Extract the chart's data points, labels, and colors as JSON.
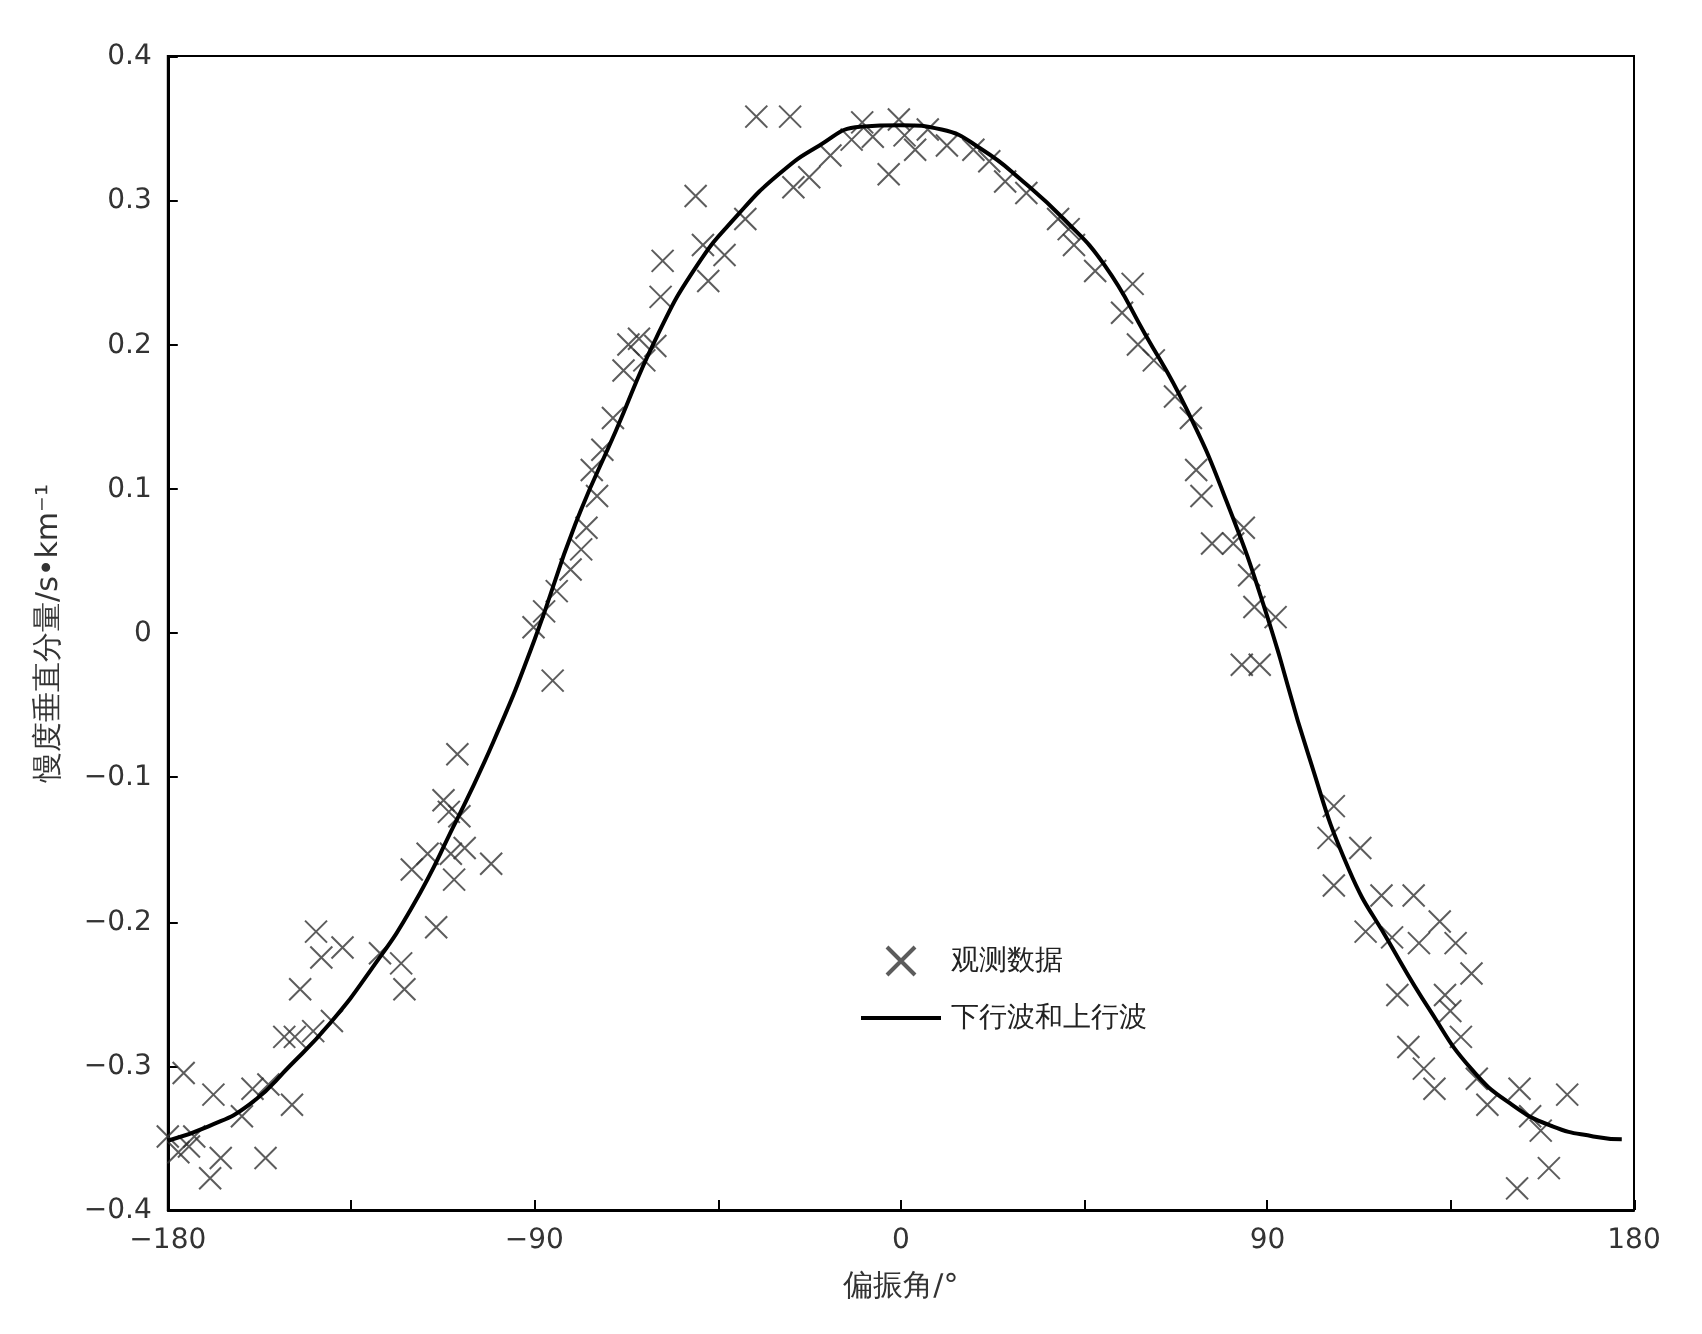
{
  "chart_data": {
    "type": "scatter",
    "xlabel": "偏振角/°",
    "ylabel": "慢度垂直分量/s•km⁻¹",
    "xlim": [
      -180,
      180
    ],
    "xticks": [
      -180,
      {
        "value": -135,
        "label": null
      },
      -90,
      {
        "value": -45,
        "label": null
      },
      0,
      {
        "value": 45,
        "label": null
      },
      90,
      {
        "value": 135,
        "label": null
      },
      180
    ],
    "ylim": [
      -0.4,
      0.4
    ],
    "yticks": [
      -0.4,
      -0.3,
      -0.2,
      -0.1,
      0,
      0.1,
      0.2,
      0.3,
      0.4
    ],
    "grid": false,
    "legend": "bottom",
    "marker": "cross",
    "series": [
      {
        "name": "观测数据",
        "color": "#333333",
        "x": [
          -180,
          -176.1,
          -174.8,
          -173.5,
          -177.4,
          -169.6,
          -168.8,
          -167,
          -159.2,
          -156,
          -155.3,
          -161.8,
          -149.5,
          -151.4,
          -147.5,
          -148.8,
          -143.6,
          -142.3,
          -144.3,
          -139.7,
          -137.1,
          -127.9,
          -122.7,
          -121.9,
          -120.1,
          -116.2,
          -114.1,
          -112.3,
          -111,
          -110.5,
          -109.7,
          -108.9,
          -108.4,
          -107.1,
          -100.6,
          -90.2,
          -87.6,
          -85.5,
          -84.5,
          -81.1,
          -78.5,
          -77.2,
          -75.9,
          -74.6,
          -73.3,
          -70.7,
          -68.1,
          -66.9,
          -64.3,
          -63,
          -60.3,
          -59,
          -58.5,
          -50.4,
          -48.6,
          -47.3,
          -43.3,
          -38.2,
          -35.5,
          -27.2,
          -26.4,
          -22.5,
          -17.3,
          -12.1,
          -9.5,
          -6.9,
          -3,
          -0.5,
          0.9,
          3.5,
          6.6,
          11.3,
          17.8,
          21.7,
          25.6,
          30.8,
          38.6,
          41.2,
          42.5,
          47.7,
          54.3,
          56.9,
          58.2,
          62.1,
          67.3,
          71.2,
          72.5,
          73.8,
          76.4,
          81.6,
          83.7,
          84.2,
          85.5,
          86.8,
          88.1,
          92,
          105,
          106.3,
          106.3,
          112.8,
          114.1,
          118,
          120.6,
          121.9,
          124.6,
          125.9,
          127.2,
          128.4,
          131,
          132.3,
          133.6,
          134.9,
          136.2,
          137.5,
          140.1,
          141.4,
          144,
          151.3,
          151.9,
          154.5,
          157.1,
          159.1,
          163.6
        ],
        "values": [
          -0.349,
          -0.305,
          -0.356,
          -0.349,
          -0.36,
          -0.378,
          -0.32,
          -0.364,
          -0.316,
          -0.364,
          -0.313,
          -0.335,
          -0.327,
          -0.28,
          -0.247,
          -0.28,
          -0.207,
          -0.225,
          -0.276,
          -0.269,
          -0.218,
          -0.222,
          -0.229,
          -0.247,
          -0.164,
          -0.153,
          -0.204,
          -0.116,
          -0.124,
          -0.153,
          -0.171,
          -0.084,
          -0.127,
          -0.149,
          -0.16,
          0.004,
          0.015,
          -0.033,
          0.029,
          0.044,
          0.058,
          0.073,
          0.113,
          0.095,
          0.127,
          0.149,
          0.182,
          0.2,
          0.204,
          0.189,
          0.199,
          0.233,
          0.258,
          0.303,
          0.269,
          0.244,
          0.262,
          0.287,
          0.358,
          0.358,
          0.309,
          0.316,
          0.331,
          0.342,
          0.354,
          0.344,
          0.318,
          0.356,
          0.345,
          0.335,
          0.349,
          0.338,
          0.335,
          0.327,
          0.313,
          0.305,
          0.287,
          0.28,
          0.269,
          0.251,
          0.222,
          0.242,
          0.2,
          0.189,
          0.164,
          0.149,
          0.113,
          0.095,
          0.062,
          0.062,
          -0.022,
          0.073,
          0.04,
          0.018,
          -0.022,
          0.011,
          -0.142,
          -0.12,
          -0.175,
          -0.149,
          -0.207,
          -0.182,
          -0.211,
          -0.251,
          -0.287,
          -0.182,
          -0.215,
          -0.302,
          -0.316,
          -0.2,
          -0.251,
          -0.262,
          -0.215,
          -0.28,
          -0.236,
          -0.309,
          -0.327,
          -0.385,
          -0.316,
          -0.335,
          -0.345,
          -0.371,
          -0.32
        ]
      },
      {
        "name": "下行波和上行波",
        "type": "line",
        "color": "#000000",
        "marker": "none",
        "line_style": "solid",
        "x": [
          -180,
          -170,
          -160,
          -150,
          -140,
          -130,
          -120,
          -110,
          -100,
          -90,
          -80,
          -70,
          -60,
          -50,
          -40,
          -30,
          -20,
          -10,
          0,
          10,
          20,
          30,
          40,
          50,
          60,
          70,
          80,
          90,
          100,
          110,
          120,
          130,
          140,
          150,
          160,
          170,
          177
        ],
        "values": [
          -0.352,
          -0.342,
          -0.327,
          -0.3,
          -0.27,
          -0.233,
          -0.19,
          -0.135,
          -0.075,
          -0.005,
          0.075,
          0.14,
          0.205,
          0.255,
          0.29,
          0.318,
          0.338,
          0.351,
          0.352,
          0.349,
          0.335,
          0.313,
          0.287,
          0.255,
          0.207,
          0.156,
          0.091,
          0.011,
          -0.084,
          -0.164,
          -0.215,
          -0.262,
          -0.302,
          -0.327,
          -0.342,
          -0.349,
          -0.351
        ]
      }
    ]
  }
}
